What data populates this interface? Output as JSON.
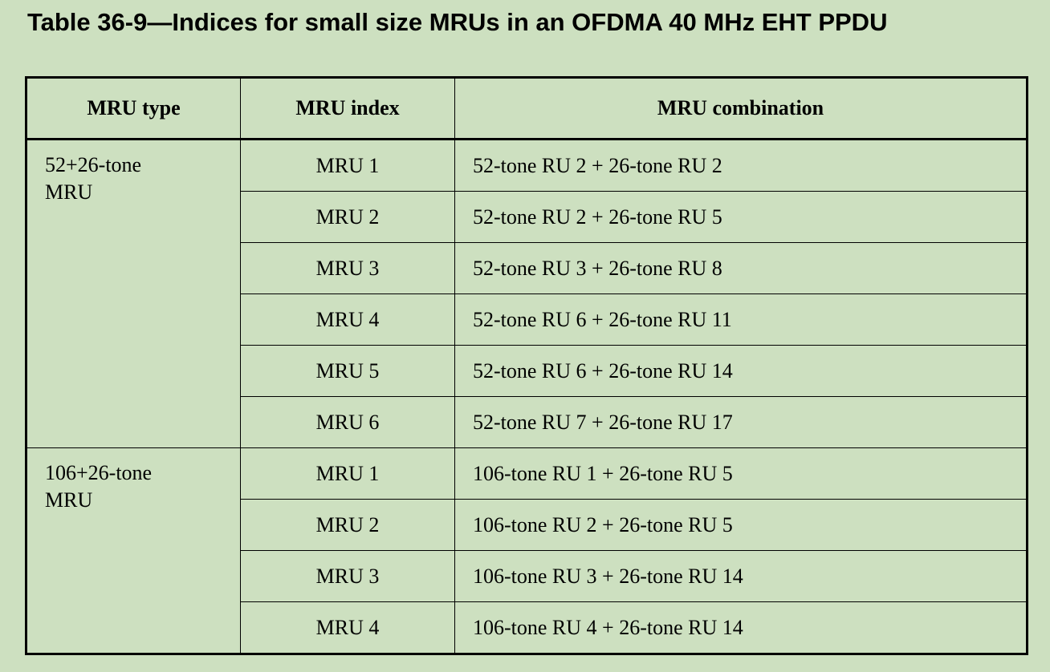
{
  "caption": "Table 36-9—Indices for small size MRUs in an OFDMA 40 MHz EHT PPDU",
  "headers": {
    "type": "MRU type",
    "index": "MRU index",
    "combination": "MRU combination"
  },
  "groups": [
    {
      "type_line1": "52+26-tone",
      "type_line2": "MRU",
      "rows": [
        {
          "index": "MRU 1",
          "combination": "52-tone RU 2 + 26-tone RU 2"
        },
        {
          "index": "MRU 2",
          "combination": "52-tone RU 2 + 26-tone RU 5"
        },
        {
          "index": "MRU 3",
          "combination": "52-tone RU 3 + 26-tone RU 8"
        },
        {
          "index": "MRU 4",
          "combination": "52-tone RU 6 + 26-tone RU 11"
        },
        {
          "index": "MRU 5",
          "combination": "52-tone RU 6 + 26-tone RU 14"
        },
        {
          "index": "MRU 6",
          "combination": "52-tone RU 7 + 26-tone RU 17"
        }
      ]
    },
    {
      "type_line1": "106+26-tone",
      "type_line2": "MRU",
      "rows": [
        {
          "index": "MRU 1",
          "combination": "106-tone RU 1 + 26-tone RU 5"
        },
        {
          "index": "MRU 2",
          "combination": "106-tone RU 2 + 26-tone RU 5"
        },
        {
          "index": "MRU 3",
          "combination": "106-tone RU 3 + 26-tone RU 14"
        },
        {
          "index": "MRU 4",
          "combination": "106-tone RU 4 + 26-tone RU 14"
        }
      ]
    }
  ]
}
